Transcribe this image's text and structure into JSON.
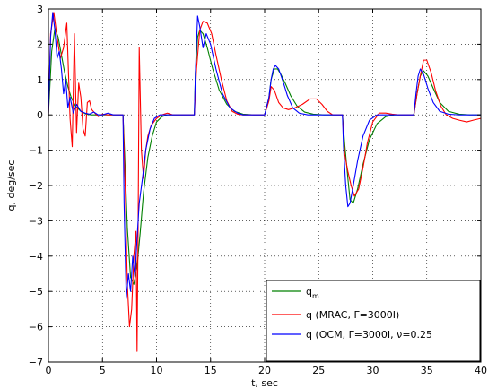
{
  "chart_data": {
    "type": "line",
    "title": "",
    "xlabel": "t, sec",
    "ylabel": "q, deg/sec",
    "xlim": [
      0,
      40
    ],
    "ylim": [
      -7,
      3
    ],
    "xticks": [
      0,
      5,
      10,
      15,
      20,
      25,
      30,
      35,
      40
    ],
    "yticks": [
      3,
      2,
      1,
      0,
      -1,
      -2,
      -3,
      -4,
      -5,
      -6,
      -7
    ],
    "grid": true,
    "legend_position": "bottom-right",
    "legend": [
      {
        "label": "q",
        "sub": "m",
        "color": "#008000"
      },
      {
        "label": "q (MRAC, Γ=3000I)",
        "sub": "",
        "color": "#ff0000"
      },
      {
        "label": "q (OCM, Γ=3000I, ν=0.25",
        "sub": "",
        "color": "#0000ff"
      }
    ],
    "series": [
      {
        "name": "q_m",
        "color": "#008000",
        "x": [
          0,
          0.3,
          0.6,
          0.9,
          1.2,
          1.5,
          1.8,
          2.1,
          2.5,
          3,
          3.5,
          4,
          4.5,
          5,
          5.5,
          6,
          6.5,
          6.9,
          7.1,
          7.3,
          7.6,
          7.9,
          8.2,
          8.5,
          8.8,
          9.2,
          9.6,
          10,
          10.5,
          11,
          11.5,
          12,
          12.5,
          13,
          13.5,
          13.6,
          13.8,
          14.0,
          14.3,
          14.7,
          15.2,
          15.8,
          16.5,
          17.2,
          18,
          19,
          20,
          20.4,
          20.6,
          20.9,
          21.2,
          21.5,
          21.9,
          22.4,
          23,
          23.7,
          24.5,
          25.5,
          26.5,
          27.2,
          27.4,
          27.7,
          27.9,
          28.2,
          28.6,
          29.1,
          29.7,
          30.4,
          31.2,
          32,
          33,
          33.8,
          34.1,
          34.4,
          34.7,
          35.1,
          35.6,
          36.2,
          37,
          38,
          39,
          40
        ],
        "y": [
          0,
          1.8,
          2.45,
          2.2,
          1.7,
          1.2,
          0.8,
          0.5,
          0.25,
          0.1,
          0.02,
          0,
          0,
          0,
          0,
          0,
          0,
          0,
          -1.5,
          -3.2,
          -4.6,
          -4.8,
          -4.3,
          -3.3,
          -2.2,
          -1.2,
          -0.6,
          -0.2,
          -0.05,
          0,
          0,
          0,
          0,
          0,
          0,
          1.2,
          2.2,
          2.4,
          2.3,
          1.9,
          1.3,
          0.7,
          0.3,
          0.1,
          0.02,
          0,
          0,
          0.5,
          1.0,
          1.3,
          1.3,
          1.15,
          0.9,
          0.55,
          0.25,
          0.08,
          0.02,
          0,
          0,
          0,
          -0.8,
          -1.8,
          -2.4,
          -2.5,
          -2.1,
          -1.4,
          -0.7,
          -0.25,
          -0.05,
          0,
          0,
          0,
          0.6,
          1.1,
          1.25,
          1.1,
          0.75,
          0.35,
          0.1,
          0.02,
          0,
          0
        ]
      },
      {
        "name": "q (MRAC, Γ=3000I)",
        "color": "#ff0000",
        "x": [
          0,
          0.2,
          0.5,
          0.8,
          1.1,
          1.4,
          1.7,
          2.0,
          2.2,
          2.4,
          2.6,
          2.8,
          3.0,
          3.2,
          3.4,
          3.6,
          3.8,
          4.0,
          4.3,
          4.6,
          5.0,
          5.5,
          6.0,
          6.5,
          6.9,
          7.1,
          7.3,
          7.5,
          7.7,
          7.9,
          8.1,
          8.2,
          8.3,
          8.4,
          8.6,
          8.8,
          9.0,
          9.2,
          9.5,
          10,
          10.5,
          11,
          11.5,
          12,
          13,
          13.5,
          13.7,
          14.0,
          14.3,
          14.7,
          15.1,
          15.5,
          16,
          16.5,
          17,
          17.5,
          18,
          19,
          20,
          20.4,
          20.6,
          20.9,
          21.3,
          21.7,
          22.2,
          22.8,
          23.5,
          24.2,
          24.8,
          25.3,
          25.8,
          26.3,
          26.8,
          27.2,
          27.4,
          27.7,
          28.0,
          28.3,
          28.7,
          29.1,
          29.5,
          30.0,
          30.6,
          31.2,
          31.8,
          32.4,
          33,
          33.8,
          34.1,
          34.4,
          34.7,
          35.0,
          35.4,
          35.8,
          36.3,
          36.8,
          37.4,
          38,
          38.7,
          39.3,
          40
        ],
        "y": [
          0,
          2.3,
          2.9,
          2.2,
          1.6,
          1.9,
          2.6,
          -0.1,
          -0.9,
          2.3,
          -0.5,
          0.9,
          0.5,
          -0.4,
          -0.6,
          0.35,
          0.4,
          0.15,
          0.05,
          -0.05,
          0.02,
          0,
          0,
          0,
          0,
          -2.0,
          -4.8,
          -6.0,
          -5.5,
          -4.0,
          -3.3,
          -6.7,
          -3.0,
          1.9,
          -1.0,
          -1.8,
          -1.0,
          -0.6,
          -0.3,
          -0.1,
          0,
          0.05,
          0,
          0,
          0,
          0,
          1.3,
          2.4,
          2.65,
          2.6,
          2.3,
          1.7,
          1.0,
          0.4,
          0.1,
          0.02,
          0,
          0,
          0,
          0.4,
          0.8,
          0.7,
          0.35,
          0.2,
          0.15,
          0.2,
          0.3,
          0.45,
          0.45,
          0.3,
          0.1,
          0,
          0,
          0,
          -1.1,
          -1.6,
          -2.0,
          -2.3,
          -2.1,
          -1.5,
          -0.8,
          -0.2,
          0.05,
          0.05,
          0.02,
          0,
          0,
          0,
          0.6,
          1.1,
          1.55,
          1.55,
          1.2,
          0.7,
          0.25,
          0.0,
          -0.1,
          -0.15,
          -0.2,
          -0.15,
          -0.1
        ]
      },
      {
        "name": "q (OCM, Γ=3000I, ν=0.25",
        "color": "#0000ff",
        "x": [
          0,
          0.2,
          0.4,
          0.6,
          0.8,
          1.0,
          1.2,
          1.4,
          1.6,
          1.8,
          2.0,
          2.3,
          2.6,
          3.0,
          3.4,
          3.8,
          4.2,
          4.6,
          5,
          5.5,
          6,
          6.5,
          6.9,
          7.0,
          7.2,
          7.4,
          7.6,
          7.8,
          8.0,
          8.2,
          8.4,
          8.7,
          9.0,
          9.4,
          9.8,
          10.3,
          11,
          12,
          13,
          13.5,
          13.6,
          13.8,
          14.0,
          14.3,
          14.6,
          15.0,
          15.5,
          16.1,
          16.8,
          17.5,
          18,
          19,
          20,
          20.4,
          20.6,
          20.8,
          21.0,
          21.3,
          21.7,
          22.1,
          22.6,
          23.2,
          24,
          25,
          26,
          27.2,
          27.3,
          27.5,
          27.7,
          27.9,
          28.2,
          28.6,
          29.1,
          29.7,
          30.4,
          31,
          32,
          33,
          33.8,
          34.0,
          34.2,
          34.4,
          34.7,
          35.1,
          35.6,
          36.2,
          37,
          38,
          39,
          40
        ],
        "y": [
          0,
          2.2,
          2.9,
          2.4,
          1.6,
          1.8,
          1.3,
          0.6,
          1.0,
          0.2,
          0.5,
          0.05,
          0.3,
          0.1,
          0.05,
          0.02,
          0.08,
          0,
          0,
          0.05,
          0,
          0,
          0,
          -2.5,
          -5.2,
          -4.5,
          -5.0,
          -4.0,
          -4.6,
          -3.5,
          -2.5,
          -1.8,
          -1.0,
          -0.4,
          -0.1,
          0,
          0,
          0,
          0,
          0,
          1.2,
          2.8,
          2.5,
          1.9,
          2.3,
          2.0,
          1.3,
          0.6,
          0.2,
          0.05,
          0,
          0,
          0,
          0.5,
          1.0,
          1.3,
          1.4,
          1.3,
          0.95,
          0.55,
          0.2,
          0.05,
          0,
          0,
          0,
          0,
          -0.9,
          -2.0,
          -2.6,
          -2.5,
          -2.0,
          -1.3,
          -0.6,
          -0.15,
          0,
          0,
          0,
          0,
          0,
          0.6,
          1.1,
          1.3,
          1.15,
          0.75,
          0.35,
          0.1,
          0.02,
          0,
          0,
          0
        ]
      }
    ]
  }
}
